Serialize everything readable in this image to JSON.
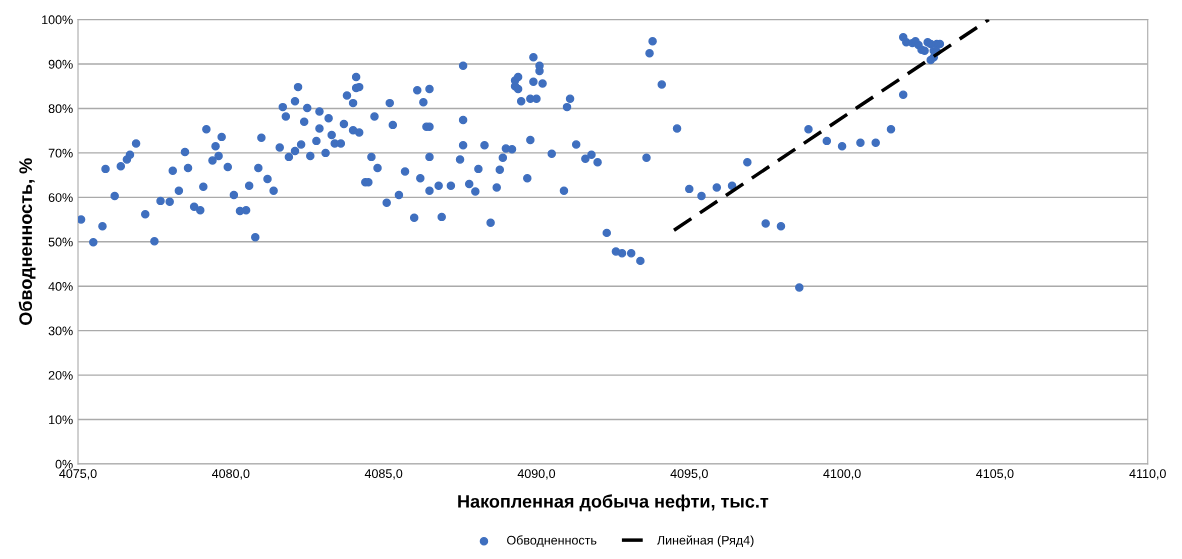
{
  "chart_data": {
    "type": "scatter",
    "xlabel": "Накопленная добыча нефти, тыс.т",
    "ylabel": "Обводненность, %",
    "series": [
      {
        "name": "Обводненность",
        "color": "#3f6fbf",
        "marker": "circle",
        "x": [
          4075.1,
          4075.5,
          4075.8,
          4075.9,
          4076.2,
          4076.4,
          4076.6,
          4076.7,
          4076.9,
          4077.2,
          4077.5,
          4077.7,
          4078.0,
          4078.1,
          4078.3,
          4078.5,
          4078.6,
          4078.8,
          4079.0,
          4079.1,
          4079.2,
          4079.4,
          4079.5,
          4079.6,
          4079.7,
          4079.9,
          4080.1,
          4080.3,
          4080.5,
          4080.6,
          4080.8,
          4080.9,
          4081.0,
          4081.2,
          4081.4,
          4081.6,
          4081.7,
          4081.8,
          4081.9,
          4082.1,
          4082.1,
          4082.2,
          4082.3,
          4082.4,
          4082.5,
          4082.6,
          4082.8,
          4082.9,
          4082.9,
          4083.1,
          4083.2,
          4083.3,
          4083.4,
          4083.6,
          4083.7,
          4083.8,
          4084.0,
          4084.0,
          4084.1,
          4084.1,
          4084.2,
          4084.2,
          4084.4,
          4084.5,
          4084.6,
          4084.7,
          4084.8,
          4085.1,
          4085.2,
          4085.3,
          4085.5,
          4085.7,
          4086.0,
          4086.1,
          4086.2,
          4086.3,
          4086.4,
          4086.5,
          4086.5,
          4086.5,
          4086.5,
          4086.8,
          4086.9,
          4087.2,
          4087.5,
          4087.6,
          4087.6,
          4087.6,
          4087.8,
          4088.0,
          4088.1,
          4088.3,
          4088.5,
          4088.7,
          4088.8,
          4088.9,
          4089.0,
          4089.2,
          4089.3,
          4089.3,
          4089.4,
          4089.4,
          4089.5,
          4089.7,
          4089.8,
          4089.8,
          4089.9,
          4089.9,
          4090.0,
          4090.1,
          4090.1,
          4090.2,
          4090.5,
          4090.9,
          4091.0,
          4091.1,
          4091.3,
          4091.6,
          4091.8,
          4092.0,
          4092.3,
          4092.6,
          4092.8,
          4093.1,
          4093.4,
          4093.6,
          4093.7,
          4093.8,
          4094.1,
          4094.6,
          4095.0,
          4095.4,
          4095.9,
          4096.4,
          4096.9,
          4097.5,
          4098.0,
          4098.6,
          4098.9,
          4099.5,
          4100.0,
          4100.6,
          4101.1,
          4101.6,
          4102.0,
          4102.0,
          4102.1,
          4102.3,
          4102.4,
          4102.5,
          4102.6,
          4102.7,
          4102.8,
          4102.9,
          4103.0,
          4102.9,
          4103.0,
          4103.1,
          4103.1,
          4103.2
        ],
        "values": [
          55.0,
          49.9,
          53.5,
          66.4,
          60.3,
          67.0,
          68.5,
          69.6,
          72.1,
          56.2,
          50.1,
          59.2,
          59.0,
          66.0,
          61.5,
          70.2,
          66.6,
          57.9,
          57.1,
          62.4,
          75.3,
          68.3,
          71.5,
          69.3,
          73.6,
          66.8,
          60.5,
          56.9,
          57.1,
          62.6,
          51.0,
          66.6,
          73.4,
          64.1,
          61.5,
          71.2,
          80.3,
          78.2,
          69.1,
          70.4,
          81.6,
          84.8,
          71.9,
          77.0,
          80.1,
          69.3,
          72.7,
          79.3,
          75.5,
          70.0,
          77.8,
          74.0,
          72.1,
          72.1,
          76.5,
          82.9,
          81.2,
          75.1,
          84.6,
          87.1,
          84.8,
          74.6,
          63.4,
          63.4,
          69.1,
          78.2,
          66.6,
          58.8,
          81.2,
          76.3,
          60.5,
          65.8,
          55.4,
          84.1,
          64.3,
          81.4,
          75.9,
          75.9,
          69.1,
          61.5,
          84.4,
          62.6,
          55.6,
          62.6,
          68.5,
          77.4,
          89.6,
          71.7,
          63.0,
          61.3,
          66.4,
          71.7,
          54.3,
          62.2,
          66.2,
          68.9,
          71.0,
          70.8,
          85.0,
          86.3,
          84.4,
          87.1,
          81.6,
          64.3,
          72.9,
          82.2,
          86.0,
          91.5,
          82.2,
          88.4,
          89.6,
          85.6,
          69.8,
          61.5,
          80.3,
          82.2,
          71.9,
          68.7,
          69.6,
          67.9,
          52.0,
          47.8,
          47.4,
          47.4,
          45.7,
          68.9,
          92.4,
          95.1,
          85.4,
          75.5,
          61.9,
          60.3,
          62.2,
          62.6,
          67.9,
          54.1,
          53.5,
          39.7,
          75.3,
          72.7,
          71.5,
          72.3,
          72.3,
          75.3,
          83.1,
          96.0,
          94.9,
          94.7,
          95.1,
          94.3,
          93.2,
          93.0,
          94.9,
          94.5,
          93.0,
          90.9,
          91.5,
          94.5,
          92.8,
          94.5
        ]
      },
      {
        "name": "Линейная (Ряд4)",
        "type": "line",
        "color": "#000000",
        "line_style": "dashed",
        "marker": "none",
        "x": [
          4094.5,
          4104.8
        ],
        "values": [
          52.6,
          100
        ]
      }
    ],
    "xlim": [
      4075,
      4110
    ],
    "xticks": [
      {
        "value": 4075,
        "label": "4075,0"
      },
      {
        "value": 4080,
        "label": "4080,0"
      },
      {
        "value": 4085,
        "label": "4085,0"
      },
      {
        "value": 4090,
        "label": "4090,0"
      },
      {
        "value": 4095,
        "label": "4095,0"
      },
      {
        "value": 4100,
        "label": "4100,0"
      },
      {
        "value": 4105,
        "label": "4105,0"
      },
      {
        "value": 4110,
        "label": "4110,0"
      }
    ],
    "ylim": [
      0,
      100
    ],
    "yticks": [
      {
        "value": 0,
        "label": "0%"
      },
      {
        "value": 10,
        "label": "10%"
      },
      {
        "value": 20,
        "label": "20%"
      },
      {
        "value": 30,
        "label": "30%"
      },
      {
        "value": 40,
        "label": "40%"
      },
      {
        "value": 50,
        "label": "50%"
      },
      {
        "value": 60,
        "label": "60%"
      },
      {
        "value": 70,
        "label": "70%"
      },
      {
        "value": 80,
        "label": "80%"
      },
      {
        "value": 90,
        "label": "90%"
      },
      {
        "value": 100,
        "label": "100%"
      }
    ],
    "grid": "y",
    "legend": "bottom"
  }
}
